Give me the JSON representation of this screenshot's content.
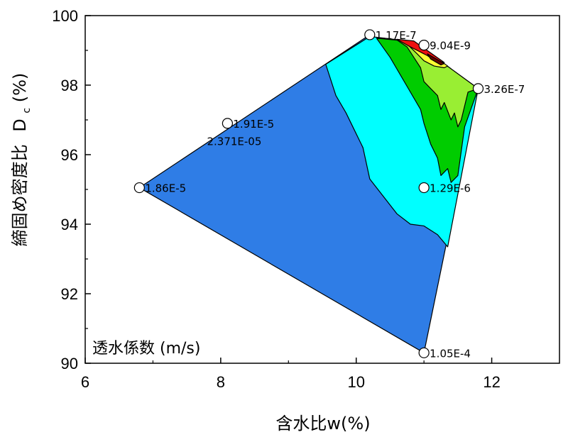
{
  "chart_data": {
    "type": "contour",
    "xlabel": "含水比w(%)",
    "ylabel_main": "締固め密度比",
    "ylabel_symbol": "D",
    "ylabel_sub": "c",
    "ylabel_unit": "(%)",
    "legend_title": "透水係数 (m/s)",
    "xlim": [
      6,
      13
    ],
    "ylim": [
      90,
      100
    ],
    "x_ticks": [
      "6",
      "8",
      "10",
      "12"
    ],
    "y_ticks": [
      "90",
      "92",
      "94",
      "96",
      "98",
      "100"
    ],
    "colors": {
      "blue": "#2f7de6",
      "cyan": "#00ffff",
      "green": "#00cc00",
      "lightgreen": "#99ee33",
      "yellow": "#ffff33",
      "red": "#ee1111",
      "darkred": "#660000",
      "outline": "#000000"
    },
    "data_points": [
      {
        "x": 10.2,
        "y": 99.45,
        "label": "1.17E-7"
      },
      {
        "x": 11.0,
        "y": 99.15,
        "label": "9.04E-9"
      },
      {
        "x": 11.8,
        "y": 97.9,
        "label": "3.26E-7"
      },
      {
        "x": 8.1,
        "y": 96.9,
        "label": "1.91E-5"
      },
      {
        "x": 6.8,
        "y": 95.05,
        "label": "1.86E-5"
      },
      {
        "x": 11.0,
        "y": 95.05,
        "label": "1.29E-6"
      },
      {
        "x": 11.0,
        "y": 90.3,
        "label": "1.05E-4"
      }
    ],
    "annotation": {
      "x": 8.2,
      "y": 96.4,
      "label": "2.371E-05"
    }
  }
}
